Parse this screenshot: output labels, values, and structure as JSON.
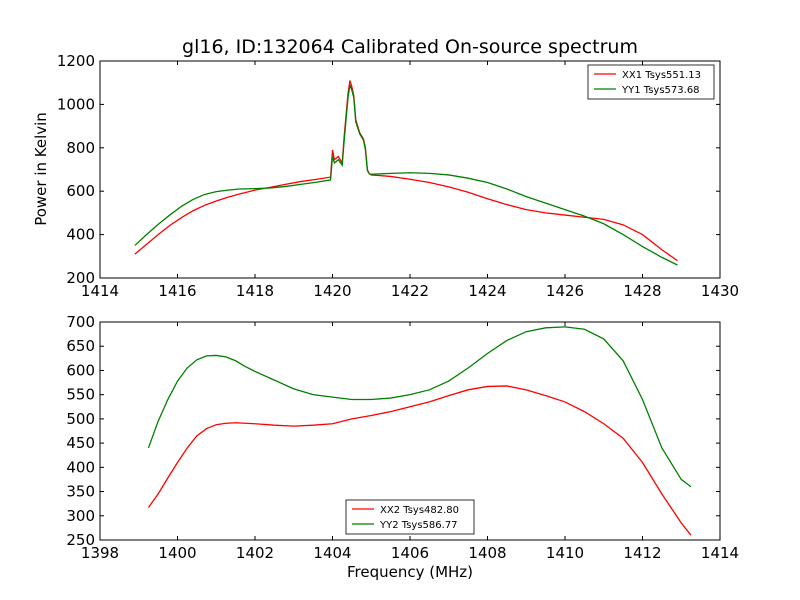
{
  "figure": {
    "title": "gl16, ID:132064 Calibrated On-source spectrum",
    "ylabel": "Power in Kelvin",
    "xlabel": "Frequency (MHz)"
  },
  "chart_data": [
    {
      "type": "line",
      "title": "gl16, ID:132064 Calibrated On-source spectrum",
      "ylabel": "Power in Kelvin",
      "xlabel": "",
      "xlim": [
        1414,
        1430
      ],
      "ylim": [
        200,
        1200
      ],
      "xticks": [
        1414,
        1416,
        1418,
        1420,
        1422,
        1424,
        1426,
        1428,
        1430
      ],
      "yticks": [
        200,
        400,
        600,
        800,
        1000,
        1200
      ],
      "grid": false,
      "legend": "top-right",
      "series": [
        {
          "name": "XX1 Tsys551.13",
          "color": "#ff0000",
          "x": [
            1414.9,
            1415.2,
            1415.5,
            1415.8,
            1416.1,
            1416.4,
            1416.7,
            1417.0,
            1417.3,
            1417.6,
            1418.0,
            1418.4,
            1418.8,
            1419.2,
            1419.6,
            1419.95,
            1420.0,
            1420.05,
            1420.15,
            1420.25,
            1420.3,
            1420.4,
            1420.45,
            1420.5,
            1420.55,
            1420.6,
            1420.7,
            1420.8,
            1420.85,
            1420.9,
            1420.95,
            1421.0,
            1421.5,
            1422.0,
            1422.5,
            1423.0,
            1423.5,
            1424.0,
            1424.5,
            1425.0,
            1425.5,
            1426.0,
            1426.5,
            1427.0,
            1427.5,
            1428.0,
            1428.5,
            1428.9
          ],
          "values": [
            310,
            355,
            400,
            442,
            478,
            510,
            535,
            555,
            572,
            587,
            605,
            618,
            632,
            645,
            655,
            665,
            790,
            745,
            760,
            730,
            850,
            1050,
            1110,
            1080,
            1040,
            930,
            870,
            840,
            800,
            700,
            680,
            675,
            668,
            655,
            640,
            620,
            595,
            565,
            538,
            515,
            500,
            490,
            480,
            470,
            445,
            400,
            330,
            280
          ]
        },
        {
          "name": "YY1 Tsys573.68",
          "color": "#008000",
          "x": [
            1414.9,
            1415.2,
            1415.5,
            1415.8,
            1416.1,
            1416.4,
            1416.7,
            1417.0,
            1417.3,
            1417.6,
            1418.0,
            1418.4,
            1418.8,
            1419.2,
            1419.6,
            1419.95,
            1420.0,
            1420.05,
            1420.15,
            1420.25,
            1420.3,
            1420.4,
            1420.45,
            1420.5,
            1420.55,
            1420.6,
            1420.7,
            1420.8,
            1420.85,
            1420.9,
            1420.95,
            1421.0,
            1421.5,
            1422.0,
            1422.5,
            1423.0,
            1423.5,
            1424.0,
            1424.5,
            1425.0,
            1425.5,
            1426.0,
            1426.5,
            1427.0,
            1427.5,
            1428.0,
            1428.5,
            1428.9
          ],
          "values": [
            350,
            400,
            447,
            490,
            530,
            562,
            585,
            598,
            605,
            610,
            612,
            615,
            622,
            632,
            642,
            652,
            760,
            730,
            745,
            720,
            830,
            1030,
            1090,
            1065,
            1030,
            920,
            865,
            835,
            790,
            695,
            680,
            678,
            682,
            685,
            682,
            675,
            660,
            640,
            610,
            575,
            545,
            515,
            485,
            450,
            400,
            345,
            295,
            260
          ]
        }
      ]
    },
    {
      "type": "line",
      "title": "",
      "ylabel": "",
      "xlabel": "Frequency (MHz)",
      "xlim": [
        1398,
        1414
      ],
      "ylim": [
        250,
        700
      ],
      "xticks": [
        1398,
        1400,
        1402,
        1404,
        1406,
        1408,
        1410,
        1412,
        1414
      ],
      "yticks": [
        250,
        300,
        350,
        400,
        450,
        500,
        550,
        600,
        650,
        700
      ],
      "grid": false,
      "legend": "bottom-center",
      "series": [
        {
          "name": "XX2 Tsys482.80",
          "color": "#ff0000",
          "x": [
            1399.25,
            1399.5,
            1399.75,
            1400.0,
            1400.25,
            1400.5,
            1400.75,
            1401.0,
            1401.25,
            1401.5,
            1401.75,
            1402.0,
            1402.5,
            1403.0,
            1403.5,
            1404.0,
            1404.5,
            1405.0,
            1405.5,
            1406.0,
            1406.5,
            1407.0,
            1407.5,
            1408.0,
            1408.5,
            1409.0,
            1409.5,
            1410.0,
            1410.5,
            1411.0,
            1411.5,
            1412.0,
            1412.5,
            1413.0,
            1413.25
          ],
          "values": [
            317,
            345,
            378,
            410,
            440,
            465,
            480,
            488,
            491,
            492,
            491,
            490,
            487,
            485,
            487,
            490,
            500,
            507,
            515,
            525,
            535,
            548,
            560,
            567,
            568,
            560,
            548,
            535,
            515,
            490,
            460,
            410,
            345,
            285,
            260
          ]
        },
        {
          "name": "YY2 Tsys586.77",
          "color": "#008000",
          "x": [
            1399.25,
            1399.5,
            1399.75,
            1400.0,
            1400.25,
            1400.5,
            1400.75,
            1401.0,
            1401.25,
            1401.5,
            1401.75,
            1402.0,
            1402.5,
            1403.0,
            1403.5,
            1404.0,
            1404.5,
            1405.0,
            1405.5,
            1406.0,
            1406.5,
            1407.0,
            1407.5,
            1408.0,
            1408.5,
            1409.0,
            1409.5,
            1410.0,
            1410.5,
            1411.0,
            1411.5,
            1412.0,
            1412.5,
            1413.0,
            1413.25
          ],
          "values": [
            440,
            495,
            540,
            578,
            605,
            622,
            630,
            631,
            628,
            620,
            608,
            598,
            580,
            562,
            550,
            545,
            540,
            540,
            543,
            550,
            560,
            578,
            605,
            635,
            662,
            680,
            688,
            690,
            685,
            665,
            620,
            540,
            440,
            375,
            360
          ]
        }
      ]
    }
  ]
}
